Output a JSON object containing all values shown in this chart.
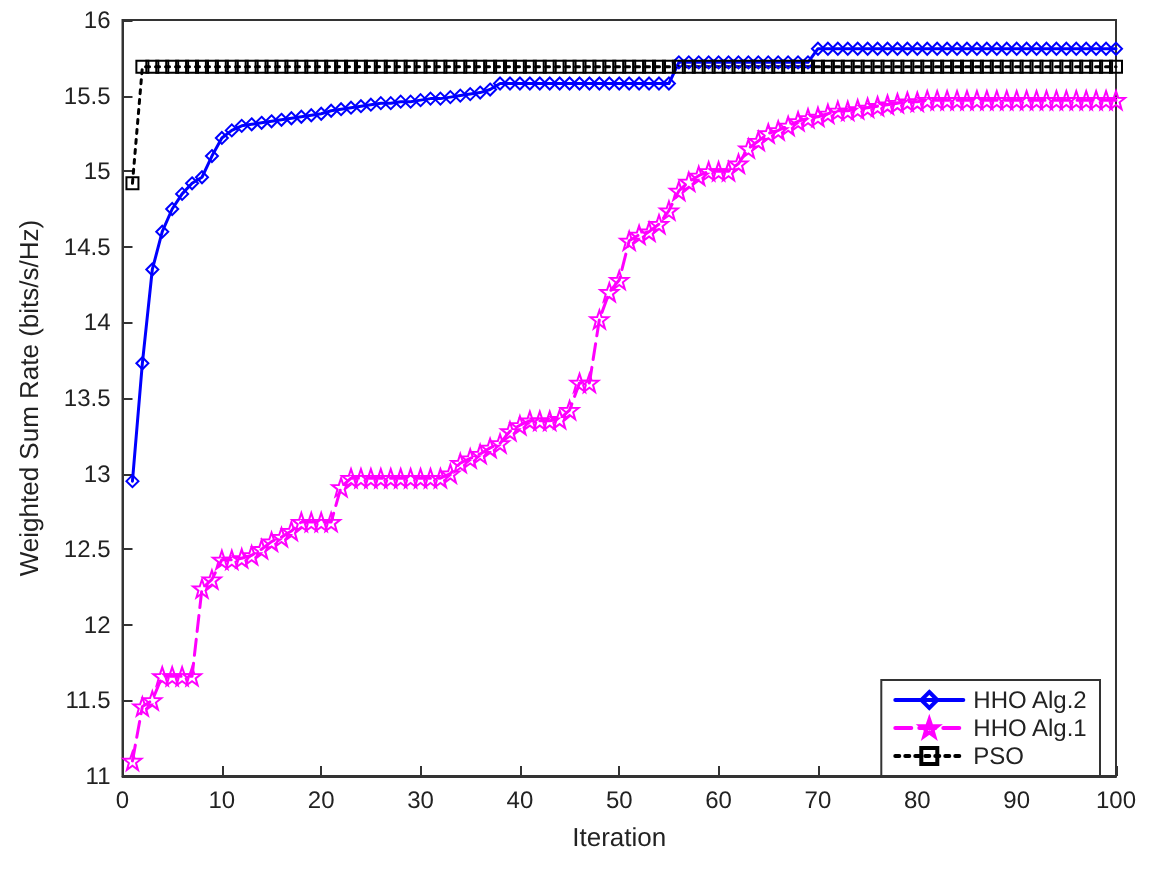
{
  "chart_data": {
    "type": "line",
    "xlabel": "Iteration",
    "ylabel": "Weighted Sum Rate (bits/s/Hz)",
    "x": [
      1,
      2,
      3,
      4,
      5,
      6,
      7,
      8,
      9,
      10,
      11,
      12,
      13,
      14,
      15,
      16,
      17,
      18,
      19,
      20,
      21,
      22,
      23,
      24,
      25,
      26,
      27,
      28,
      29,
      30,
      31,
      32,
      33,
      34,
      35,
      36,
      37,
      38,
      39,
      40,
      41,
      42,
      43,
      44,
      45,
      46,
      47,
      48,
      49,
      50,
      51,
      52,
      53,
      54,
      55,
      56,
      57,
      58,
      59,
      60,
      61,
      62,
      63,
      64,
      65,
      66,
      67,
      68,
      69,
      70,
      71,
      72,
      73,
      74,
      75,
      76,
      77,
      78,
      79,
      80,
      81,
      82,
      83,
      84,
      85,
      86,
      87,
      88,
      89,
      90,
      91,
      92,
      93,
      94,
      95,
      96,
      97,
      98,
      99,
      100
    ],
    "xlim": [
      0,
      100
    ],
    "xticks": [
      0,
      10,
      20,
      30,
      40,
      50,
      60,
      70,
      80,
      90,
      100
    ],
    "ylim": [
      11,
      16
    ],
    "yticks": [
      11,
      11.5,
      12,
      12.5,
      13,
      13.5,
      14,
      14.5,
      15,
      15.5,
      16
    ],
    "grid": false,
    "legend": "bottom right",
    "series": [
      {
        "name": "HHO Alg.2",
        "color": "#0000ff",
        "marker": "diamond",
        "line_style": "solid",
        "values": [
          12.95,
          13.73,
          14.35,
          14.6,
          14.75,
          14.85,
          14.92,
          14.96,
          15.1,
          15.22,
          15.27,
          15.3,
          15.31,
          15.32,
          15.33,
          15.34,
          15.35,
          15.36,
          15.37,
          15.38,
          15.4,
          15.41,
          15.42,
          15.43,
          15.44,
          15.45,
          15.45,
          15.46,
          15.46,
          15.47,
          15.48,
          15.48,
          15.49,
          15.5,
          15.51,
          15.52,
          15.54,
          15.58,
          15.58,
          15.58,
          15.58,
          15.58,
          15.58,
          15.58,
          15.58,
          15.58,
          15.58,
          15.58,
          15.58,
          15.58,
          15.58,
          15.58,
          15.58,
          15.58,
          15.58,
          15.72,
          15.72,
          15.72,
          15.72,
          15.72,
          15.72,
          15.72,
          15.72,
          15.72,
          15.72,
          15.72,
          15.72,
          15.72,
          15.72,
          15.81,
          15.81,
          15.81,
          15.81,
          15.81,
          15.81,
          15.81,
          15.81,
          15.81,
          15.81,
          15.81,
          15.81,
          15.81,
          15.81,
          15.81,
          15.81,
          15.81,
          15.81,
          15.81,
          15.81,
          15.81,
          15.81,
          15.81,
          15.81,
          15.81,
          15.81,
          15.81,
          15.81,
          15.81,
          15.81,
          15.81
        ]
      },
      {
        "name": "HHO Alg.1",
        "color": "#ff00ff",
        "marker": "star",
        "line_style": "dashed",
        "values": [
          11.1,
          11.46,
          11.5,
          11.66,
          11.66,
          11.66,
          11.66,
          12.24,
          12.3,
          12.43,
          12.43,
          12.44,
          12.46,
          12.5,
          12.55,
          12.58,
          12.62,
          12.68,
          12.68,
          12.68,
          12.68,
          12.91,
          12.97,
          12.97,
          12.97,
          12.97,
          12.97,
          12.97,
          12.97,
          12.97,
          12.97,
          12.97,
          13.0,
          13.07,
          13.1,
          13.13,
          13.17,
          13.2,
          13.28,
          13.32,
          13.35,
          13.35,
          13.35,
          13.36,
          13.42,
          13.6,
          13.6,
          14.02,
          14.2,
          14.28,
          14.54,
          14.58,
          14.6,
          14.65,
          14.74,
          14.87,
          14.93,
          14.97,
          15.0,
          15.0,
          15.0,
          15.05,
          15.15,
          15.2,
          15.25,
          15.27,
          15.3,
          15.33,
          15.35,
          15.36,
          15.38,
          15.4,
          15.4,
          15.41,
          15.42,
          15.43,
          15.44,
          15.45,
          15.46,
          15.46,
          15.47,
          15.47,
          15.47,
          15.47,
          15.47,
          15.47,
          15.47,
          15.47,
          15.47,
          15.47,
          15.47,
          15.47,
          15.47,
          15.47,
          15.47,
          15.47,
          15.47,
          15.47,
          15.47,
          15.47
        ]
      },
      {
        "name": "PSO",
        "color": "#000000",
        "marker": "square",
        "line_style": "dotted",
        "values": [
          14.92,
          15.69,
          15.69,
          15.69,
          15.69,
          15.69,
          15.69,
          15.69,
          15.69,
          15.69,
          15.69,
          15.69,
          15.69,
          15.69,
          15.69,
          15.69,
          15.69,
          15.69,
          15.69,
          15.69,
          15.69,
          15.69,
          15.69,
          15.69,
          15.69,
          15.69,
          15.69,
          15.69,
          15.69,
          15.69,
          15.69,
          15.69,
          15.69,
          15.69,
          15.69,
          15.69,
          15.69,
          15.69,
          15.69,
          15.69,
          15.69,
          15.69,
          15.69,
          15.69,
          15.69,
          15.69,
          15.69,
          15.69,
          15.69,
          15.69,
          15.69,
          15.69,
          15.69,
          15.69,
          15.69,
          15.69,
          15.69,
          15.69,
          15.69,
          15.69,
          15.69,
          15.69,
          15.69,
          15.69,
          15.69,
          15.69,
          15.69,
          15.69,
          15.69,
          15.69,
          15.69,
          15.69,
          15.69,
          15.69,
          15.69,
          15.69,
          15.69,
          15.69,
          15.69,
          15.69,
          15.69,
          15.69,
          15.69,
          15.69,
          15.69,
          15.69,
          15.69,
          15.69,
          15.69,
          15.69,
          15.69,
          15.69,
          15.69,
          15.69,
          15.69,
          15.69,
          15.69,
          15.69,
          15.69,
          15.69
        ]
      }
    ]
  }
}
